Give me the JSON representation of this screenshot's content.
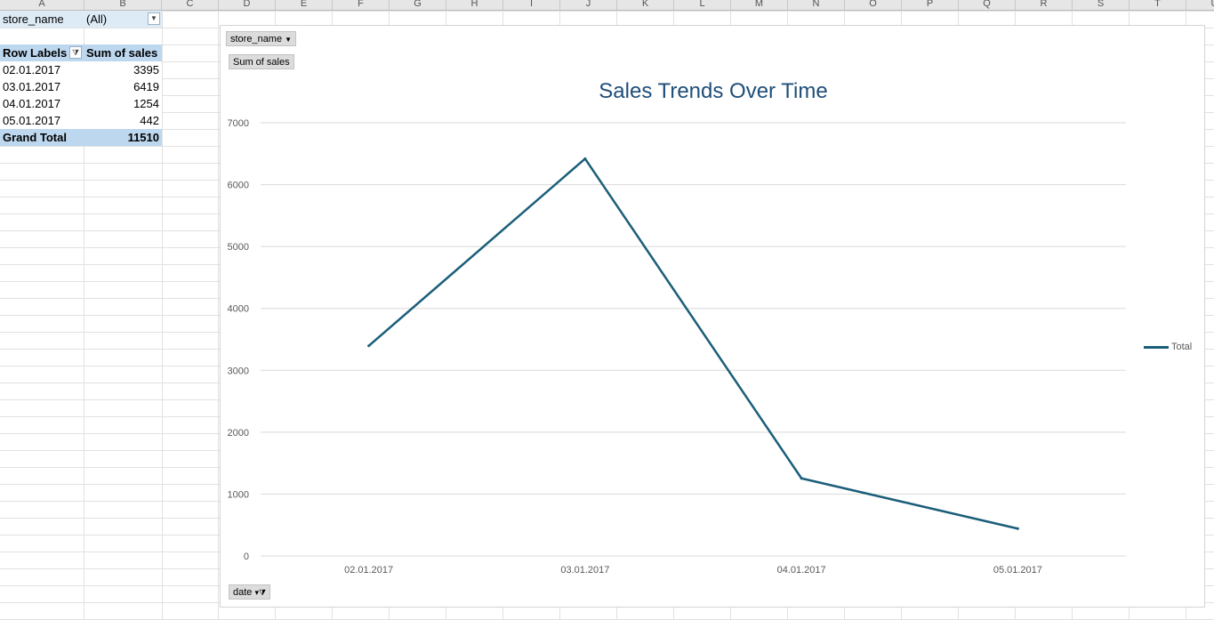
{
  "columns": [
    "A",
    "B",
    "C",
    "D",
    "E",
    "F",
    "G",
    "H",
    "I",
    "J",
    "K",
    "L",
    "M",
    "N",
    "O",
    "P",
    "Q",
    "R",
    "S",
    "T",
    "U"
  ],
  "pivot": {
    "filter_field": "store_name",
    "filter_value": "(All)",
    "header_row_labels": "Row Labels",
    "header_sum": "Sum of sales",
    "rows": [
      {
        "label": "02.01.2017",
        "value": "3395"
      },
      {
        "label": "03.01.2017",
        "value": "6419"
      },
      {
        "label": "04.01.2017",
        "value": "1254"
      },
      {
        "label": "05.01.2017",
        "value": "442"
      }
    ],
    "grand_total_label": "Grand Total",
    "grand_total_value": "11510"
  },
  "chart": {
    "filter_chip": "store_name",
    "value_chip": "Sum of sales",
    "axis_chip": "date",
    "line_color": "#1b5e7a"
  },
  "chart_data": {
    "type": "line",
    "title": "Sales Trends Over Time",
    "categories": [
      "02.01.2017",
      "03.01.2017",
      "04.01.2017",
      "05.01.2017"
    ],
    "series": [
      {
        "name": "Total",
        "values": [
          3395,
          6419,
          1254,
          442
        ]
      }
    ],
    "ylim": [
      0,
      7000
    ],
    "yticks": [
      0,
      1000,
      2000,
      3000,
      4000,
      5000,
      6000,
      7000
    ],
    "grid": true,
    "legend": "right"
  }
}
